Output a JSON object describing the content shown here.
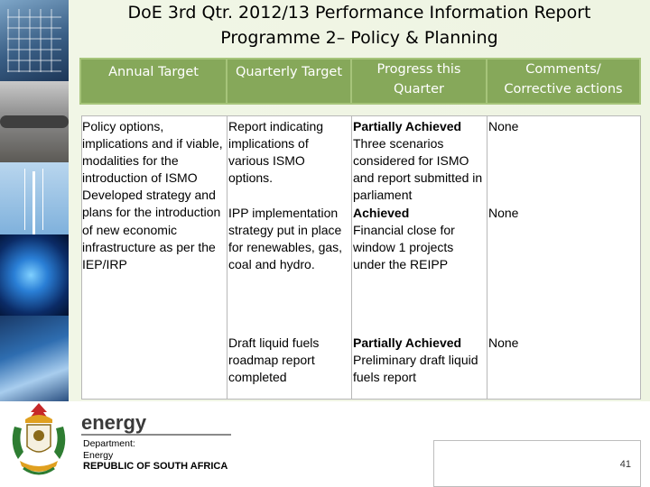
{
  "title": {
    "line1": "DoE 3rd Qtr. 2012/13 Performance Information Report",
    "line2": "Programme 2– Policy & Planning"
  },
  "table": {
    "headers": [
      "Annual Target",
      "Quarterly Target",
      "Progress this Quarter",
      "Comments/ Corrective actions"
    ],
    "annual_target": {
      "a": "Policy options, implications and if viable, modalities for the introduction of ISMO",
      "b": "Developed strategy and plans for the introduction of new economic infrastructure as per the IEP/IRP"
    },
    "rows": [
      {
        "quarterly": "Report indicating implications of various ISMO options.",
        "status": "Partially Achieved",
        "progress": "Three scenarios considered for ISMO and report submitted in parliament",
        "comment": "None"
      },
      {
        "quarterly": "IPP implementation strategy put in place for renewables, gas, coal and hydro.",
        "status": "Achieved",
        "progress": "Financial close for window 1 projects under the REIPP",
        "comment": "None"
      },
      {
        "quarterly": "Draft liquid fuels roadmap report completed",
        "status": "Partially Achieved",
        "progress": "Preliminary draft liquid fuels report",
        "comment": "None"
      }
    ]
  },
  "footer": {
    "brand": "energy",
    "dept_label": "Department:",
    "dept_name": "Energy",
    "country": "REPUBLIC OF SOUTH AFRICA",
    "page_number": "41"
  },
  "colors": {
    "header_green": "#86a85a",
    "accent_red": "#c62828"
  }
}
